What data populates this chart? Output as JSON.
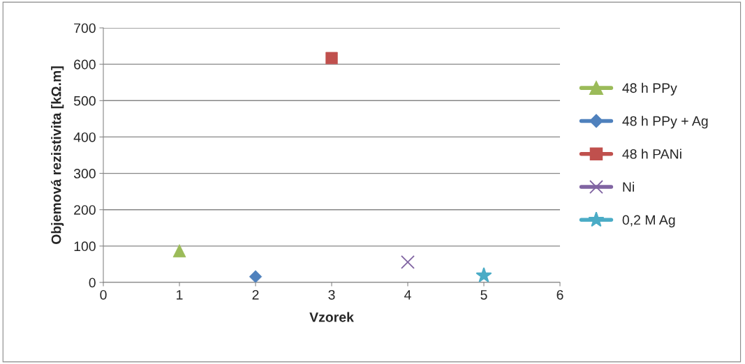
{
  "chart_data": {
    "type": "scatter",
    "xlabel": "Vzorek",
    "ylabel": "Objemová rezistivita [kΩ.m]",
    "xlim": [
      0,
      6
    ],
    "xticks": [
      0,
      1,
      2,
      3,
      4,
      5,
      6
    ],
    "ylim": [
      0,
      700
    ],
    "yticks": [
      0,
      100,
      200,
      300,
      400,
      500,
      600,
      700
    ],
    "grid": "y",
    "legend": "right",
    "series": [
      {
        "name": "48 h PPy",
        "color": "#9bbb59",
        "marker": "triangle",
        "x": [
          1
        ],
        "values": [
          87
        ]
      },
      {
        "name": "48 h PPy + Ag",
        "color": "#4f81bd",
        "marker": "diamond",
        "x": [
          2
        ],
        "values": [
          16
        ]
      },
      {
        "name": "48 h PANi",
        "color": "#c0504d",
        "marker": "square",
        "x": [
          3
        ],
        "values": [
          617
        ]
      },
      {
        "name": "Ni",
        "color": "#8064a2",
        "marker": "cross",
        "x": [
          4
        ],
        "values": [
          56
        ]
      },
      {
        "name": "0,2 M Ag",
        "color": "#4bacc6",
        "marker": "star",
        "x": [
          5
        ],
        "values": [
          19
        ]
      }
    ]
  }
}
